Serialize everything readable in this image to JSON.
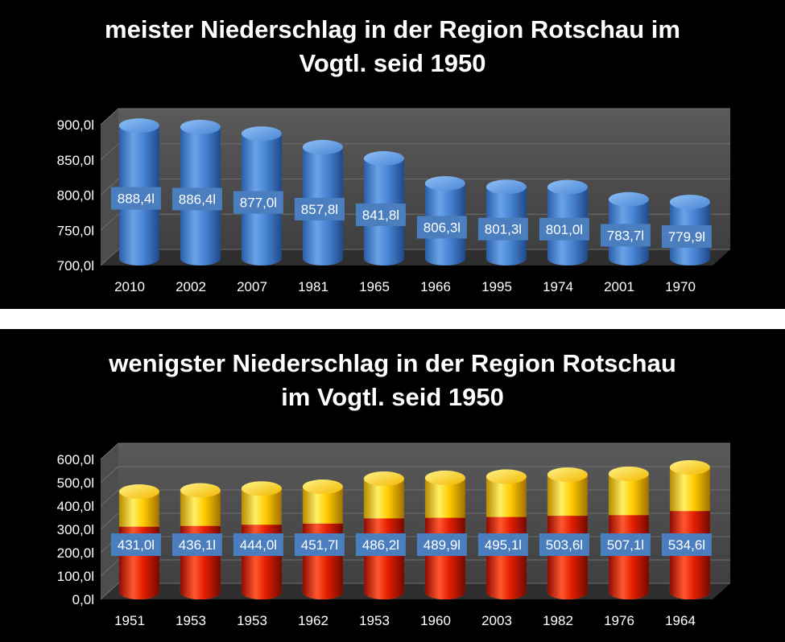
{
  "chart_data": [
    {
      "type": "bar",
      "title": "meister Niederschlag in der Region Rotschau im Vogtl. seid 1950",
      "title_lines": [
        "meister Niederschlag in der Region Rotschau im",
        "Vogtl. seid 1950"
      ],
      "categories": [
        "2010",
        "2002",
        "2007",
        "1981",
        "1965",
        "1966",
        "1995",
        "1974",
        "2001",
        "1970"
      ],
      "values": [
        888.4,
        886.4,
        877.0,
        857.8,
        841.8,
        806.3,
        801.3,
        801.0,
        783.7,
        779.9
      ],
      "data_labels": [
        "888,4l",
        "886,4l",
        "877,0l",
        "857,8l",
        "841,8l",
        "806,3l",
        "801,3l",
        "801,0l",
        "783,7l",
        "779,9l"
      ],
      "yticks": [
        "700,0l",
        "750,0l",
        "800,0l",
        "850,0l",
        "900,0l"
      ],
      "ylim": [
        700,
        900
      ],
      "grid": true,
      "style": "3d-cylinder-blue",
      "xlabel": "",
      "ylabel": ""
    },
    {
      "type": "bar",
      "title": "wenigster Niederschlag in der Region Rotschau im Vogtl. seid 1950",
      "title_lines": [
        "wenigster Niederschlag in der Region Rotschau",
        "im Vogtl. seid 1950"
      ],
      "categories": [
        "1951",
        "1953",
        "1953",
        "1962",
        "1953",
        "1960",
        "2003",
        "1982",
        "1976",
        "1964"
      ],
      "values": [
        431.0,
        436.1,
        444.0,
        451.7,
        486.2,
        489.9,
        495.1,
        503.6,
        507.1,
        534.6
      ],
      "data_labels": [
        "431,0l",
        "436,1l",
        "444,0l",
        "451,7l",
        "486,2l",
        "489,9l",
        "495,1l",
        "503,6l",
        "507,1l",
        "534,6l"
      ],
      "yticks": [
        "0,0l",
        "100,0l",
        "200,0l",
        "300,0l",
        "400,0l",
        "500,0l",
        "600,0l"
      ],
      "ylim": [
        0,
        600
      ],
      "grid": true,
      "style": "3d-cylinder-red-yellow",
      "xlabel": "",
      "ylabel": ""
    }
  ],
  "colors": {
    "background": "#000000",
    "plot_wall": "#4a4a4a",
    "plot_floor": "#3a3a3a",
    "blue_cylinder": "#3d7fd0",
    "label_box": "#4a7ebf",
    "red": "#e00000",
    "yellow": "#ffd700",
    "text": "#ffffff"
  }
}
